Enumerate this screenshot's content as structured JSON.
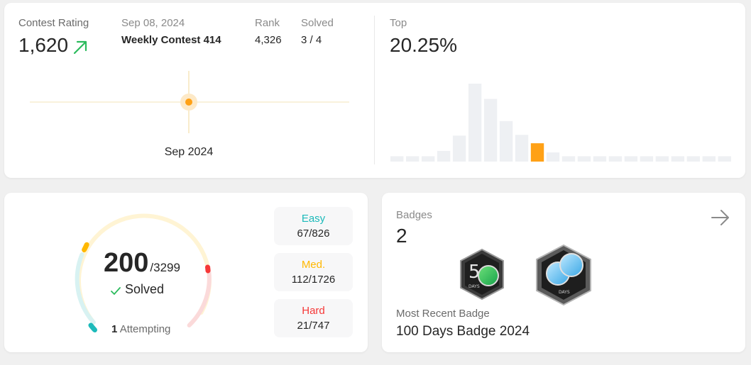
{
  "contest": {
    "rating_label": "Contest Rating",
    "rating_value": "1,620",
    "date": "Sep 08, 2024",
    "contest_name": "Weekly Contest 414",
    "rank_label": "Rank",
    "rank_value": "4,326",
    "solved_label": "Solved",
    "solved_value": "3 / 4",
    "chart_x_label": "Sep 2024",
    "top_label": "Top",
    "top_value": "20.25%"
  },
  "chart_data": [
    {
      "type": "line",
      "x": [
        "Sep 2024"
      ],
      "series": [
        {
          "values": [
            1620
          ]
        }
      ],
      "xlabel": "",
      "ylabel": ""
    },
    {
      "type": "bar",
      "values": [
        7,
        7,
        7,
        14,
        34,
        102,
        82,
        53,
        35,
        24,
        12,
        7,
        7,
        7,
        7,
        7,
        7,
        7,
        7,
        7,
        7,
        7
      ],
      "highlight_index": 9,
      "colors": {
        "bar": "#eef0f3",
        "highlight": "#ffa116"
      }
    }
  ],
  "problems": {
    "solved_count": "200",
    "total": "/3299",
    "solved_label": "Solved",
    "attempting_count": "1",
    "attempting_label": "Attempting",
    "easy_label": "Easy",
    "easy_value": "67/826",
    "med_label": "Med.",
    "med_value": "112/1726",
    "hard_label": "Hard",
    "hard_value": "21/747",
    "colors": {
      "easy": "#1cbaba",
      "medium": "#ffb800",
      "hard": "#f63737"
    }
  },
  "badges": {
    "label": "Badges",
    "count": "2",
    "recent_label": "Most Recent Badge",
    "recent_name": "100 Days Badge 2024",
    "badge_icons": [
      "50-days-badge-icon",
      "100-days-badge-icon"
    ],
    "badge_text": "DAYS"
  }
}
